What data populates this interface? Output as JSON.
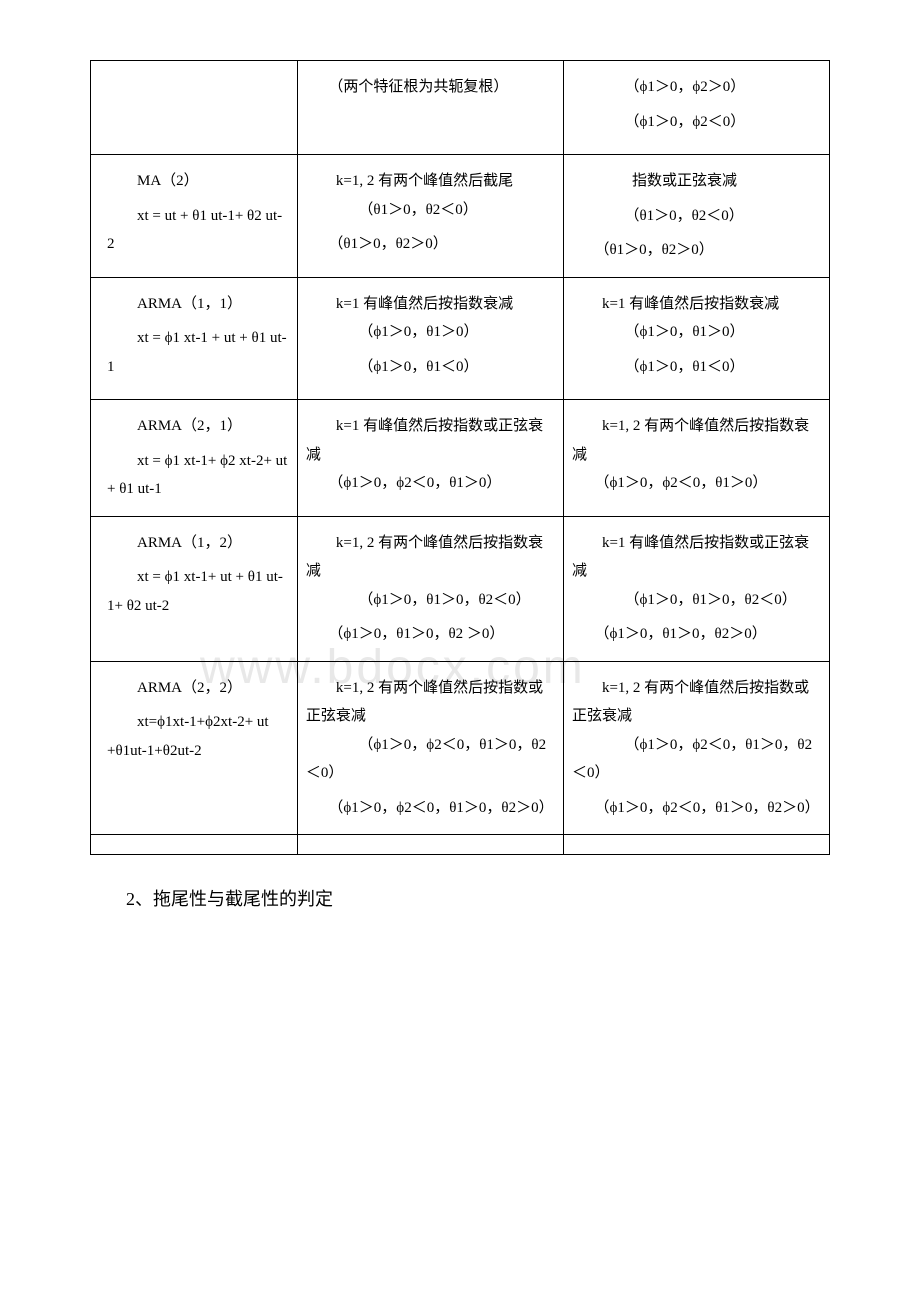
{
  "table": {
    "rows": [
      {
        "col1": "",
        "col2": [
          "　　（两个特征根为共轭复根）"
        ],
        "col3": [
          "　　（ϕ1＞0，ϕ2＞0）",
          "　　（ϕ1＞0，ϕ2＜0）"
        ]
      },
      {
        "col1": [
          "MA（2）",
          "xt = ut + θ1 ut-1+ θ2 ut-2"
        ],
        "col2": [
          "　　k=1, 2 有两个峰值然后截尾",
          "　　（θ1＞0，θ2＜0）",
          "　　（θ1＞0，θ2＞0）"
        ],
        "col3": [
          "　　指数或正弦衰减",
          "　　（θ1＞0，θ2＜0）",
          "　　（θ1＞0，θ2＞0）"
        ]
      },
      {
        "col1": [
          "ARMA（1，1）",
          "xt = ϕ1 xt-1 + ut + θ1 ut-1"
        ],
        "col2": [
          "　　k=1 有峰值然后按指数衰减",
          "　　（ϕ1＞0，θ1＞0）",
          "　　（ϕ1＞0，θ1＜0）"
        ],
        "col3": [
          "　　k=1 有峰值然后按指数衰减",
          "　　（ϕ1＞0，θ1＞0）",
          "　　（ϕ1＞0，θ1＜0）"
        ]
      },
      {
        "col1": [
          "ARMA（2，1）",
          "xt = ϕ1 xt-1+ ϕ2 xt-2+ ut + θ1 ut-1"
        ],
        "col2": [
          "　　k=1 有峰值然后按指数或正弦衰减",
          "　　（ϕ1＞0，ϕ2＜0，θ1＞0）"
        ],
        "col3": [
          "　　k=1, 2 有两个峰值然后按指数衰减",
          "　　（ϕ1＞0，ϕ2＜0，θ1＞0）"
        ]
      },
      {
        "col1": [
          "ARMA（1，2）",
          "xt = ϕ1 xt-1+ ut + θ1 ut-1+ θ2 ut-2"
        ],
        "col2": [
          "　　k=1, 2 有两个峰值然后按指数衰减",
          "　　（ϕ1＞0，θ1＞0，θ2＜0）",
          "　　（ϕ1＞0，θ1＞0，θ2 ＞0）"
        ],
        "col3": [
          "　　k=1 有峰值然后按指数或正弦衰减",
          "　　（ϕ1＞0，θ1＞0，θ2＜0）",
          "　　（ϕ1＞0，θ1＞0，θ2＞0）"
        ]
      },
      {
        "col1": [
          "ARMA（2，2）",
          "xt=ϕ1xt-1+ϕ2xt-2+ ut +θ1ut-1+θ2ut-2"
        ],
        "col2": [
          "　　k=1, 2 有两个峰值然后按指数或正弦衰减",
          "　　（ϕ1＞0，ϕ2＜0，θ1＞0，θ2＜0）",
          "　　（ϕ1＞0，ϕ2＜0，θ1＞0，θ2＞0）"
        ],
        "col3": [
          "　　k=1, 2 有两个峰值然后按指数或正弦衰减",
          "　　（ϕ1＞0，ϕ2＜0，θ1＞0，θ2＜0）",
          "　　（ϕ1＞0，ϕ2＜0，θ1＞0，θ2＞0）"
        ]
      }
    ]
  },
  "footer": "2、拖尾性与截尾性的判定",
  "watermark": "www.bdocx.com"
}
